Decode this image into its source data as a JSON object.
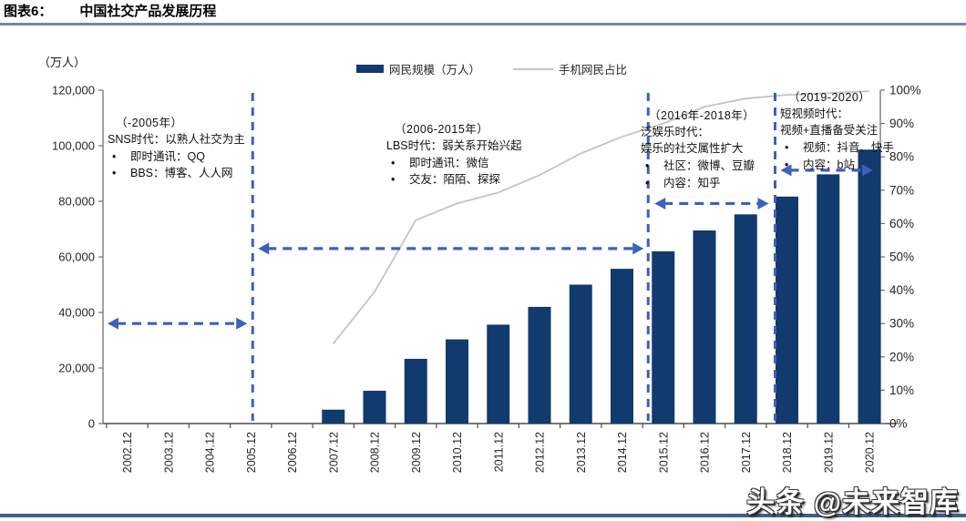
{
  "figure": {
    "label": "图表6：",
    "title": "中国社交产品发展历程"
  },
  "watermark": "头条 @未来智库",
  "chart_data": {
    "type": "bar",
    "title": "中国社交产品发展历程",
    "unit_label": "（万人）",
    "categories": [
      "2002.12",
      "2003.12",
      "2004.12",
      "2005.12",
      "2006.12",
      "2007.12",
      "2008.12",
      "2009.12",
      "2010.12",
      "2011.12",
      "2012.12",
      "2013.12",
      "2014.12",
      "2015.12",
      "2016.12",
      "2017.12",
      "2018.12",
      "2019.12",
      "2020.12"
    ],
    "series": [
      {
        "name": "网民规模（万人）",
        "type": "bar",
        "axis": "left",
        "color": "#113a6e",
        "values": [
          null,
          null,
          null,
          null,
          null,
          5000,
          11800,
          23300,
          30300,
          35600,
          42000,
          50000,
          55700,
          62000,
          69500,
          75300,
          81700,
          89700,
          98600
        ]
      },
      {
        "name": "手机网民占比",
        "type": "line",
        "axis": "right",
        "color": "#c4c4c4",
        "values": [
          null,
          null,
          null,
          null,
          null,
          24,
          39.5,
          61,
          66,
          69.3,
          74.5,
          81,
          86,
          90,
          95,
          97.5,
          98.6,
          99.1,
          99.7
        ]
      }
    ],
    "left_axis": {
      "min": 0,
      "max": 120000,
      "step": 20000,
      "tick_labels": [
        "120,000",
        "100,000",
        "80,000",
        "60,000",
        "40,000",
        "20,000",
        "0"
      ]
    },
    "right_axis": {
      "min": 0,
      "max": 100,
      "step": 10,
      "tick_labels": [
        "100%",
        "90%",
        "80%",
        "70%",
        "60%",
        "50%",
        "40%",
        "30%",
        "20%",
        "10%",
        "0%"
      ]
    },
    "legend_position": "top-center",
    "grid": false,
    "eras": [
      {
        "period": "（-2005年）",
        "title": "SNS时代：以熟人社交为主",
        "subtitle": "",
        "bullets": [
          "即时通讯：QQ",
          "BBS：博客、人人网"
        ],
        "divider_after": "2005.12",
        "arrow_pct": 30
      },
      {
        "period": "（2006-2015年）",
        "title": "LBS时代：弱关系开始兴起",
        "subtitle": "",
        "bullets": [
          "即时通讯：微信",
          "交友：陌陌、探探"
        ],
        "divider_after": "2015.12",
        "arrow_pct": 52.5
      },
      {
        "period": "（2016年-2018年）",
        "title": "泛娱乐时代：",
        "subtitle": "娱乐的社交属性扩大",
        "bullets": [
          "社区：微博、豆瓣",
          "内容：知乎"
        ],
        "divider_after": "2018.12",
        "arrow_pct": 66
      },
      {
        "period": "（2019-2020）",
        "title": "短视频时代：",
        "subtitle": "视频+直播备受关注",
        "bullets": [
          "视频：抖音、快手",
          "内容：b站"
        ],
        "divider_after": null,
        "arrow_pct": 76
      }
    ],
    "colors": {
      "bar": "#113a6e",
      "trend_line": "#c4c4c4",
      "era_dashed": "#3c61bc",
      "axis": "#707070",
      "labels": "#262626",
      "header_rule": "#6c88ae",
      "bottom_rule": "#40608c"
    }
  }
}
